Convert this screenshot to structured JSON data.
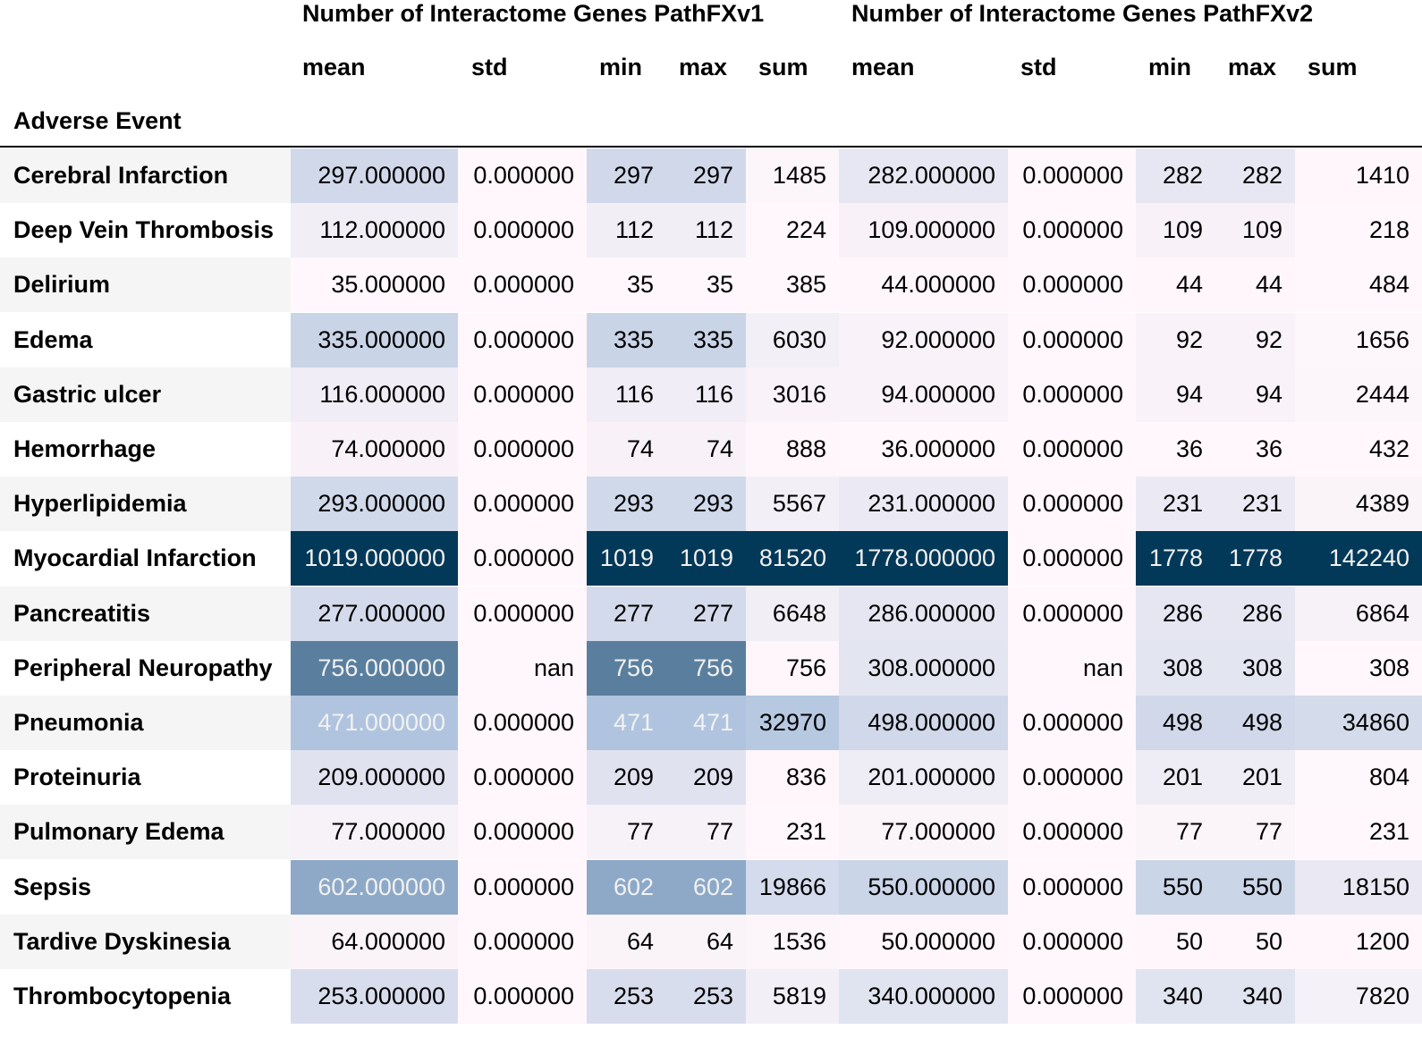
{
  "chart_data": {
    "type": "table",
    "index_label": "Adverse Event",
    "column_groups": [
      {
        "name": "Number of Interactome Genes PathFXv1",
        "columns": [
          "mean",
          "std",
          "min",
          "max",
          "sum"
        ]
      },
      {
        "name": "Number of Interactome Genes PathFXv2",
        "columns": [
          "mean",
          "std",
          "min",
          "max",
          "sum"
        ]
      }
    ],
    "rows": [
      {
        "label": "Cerebral Infarction",
        "values": [
          "297.000000",
          "0.000000",
          "297",
          "297",
          "1485",
          "282.000000",
          "0.000000",
          "282",
          "282",
          "1410"
        ]
      },
      {
        "label": "Deep Vein Thrombosis",
        "values": [
          "112.000000",
          "0.000000",
          "112",
          "112",
          "224",
          "109.000000",
          "0.000000",
          "109",
          "109",
          "218"
        ]
      },
      {
        "label": "Delirium",
        "values": [
          "35.000000",
          "0.000000",
          "35",
          "35",
          "385",
          "44.000000",
          "0.000000",
          "44",
          "44",
          "484"
        ]
      },
      {
        "label": "Edema",
        "values": [
          "335.000000",
          "0.000000",
          "335",
          "335",
          "6030",
          "92.000000",
          "0.000000",
          "92",
          "92",
          "1656"
        ]
      },
      {
        "label": "Gastric ulcer",
        "values": [
          "116.000000",
          "0.000000",
          "116",
          "116",
          "3016",
          "94.000000",
          "0.000000",
          "94",
          "94",
          "2444"
        ]
      },
      {
        "label": "Hemorrhage",
        "values": [
          "74.000000",
          "0.000000",
          "74",
          "74",
          "888",
          "36.000000",
          "0.000000",
          "36",
          "36",
          "432"
        ]
      },
      {
        "label": "Hyperlipidemia",
        "values": [
          "293.000000",
          "0.000000",
          "293",
          "293",
          "5567",
          "231.000000",
          "0.000000",
          "231",
          "231",
          "4389"
        ]
      },
      {
        "label": "Myocardial Infarction",
        "values": [
          "1019.000000",
          "0.000000",
          "1019",
          "1019",
          "81520",
          "1778.000000",
          "0.000000",
          "1778",
          "1778",
          "142240"
        ]
      },
      {
        "label": "Pancreatitis",
        "values": [
          "277.000000",
          "0.000000",
          "277",
          "277",
          "6648",
          "286.000000",
          "0.000000",
          "286",
          "286",
          "6864"
        ]
      },
      {
        "label": "Peripheral Neuropathy",
        "values": [
          "756.000000",
          "nan",
          "756",
          "756",
          "756",
          "308.000000",
          "nan",
          "308",
          "308",
          "308"
        ]
      },
      {
        "label": "Pneumonia",
        "values": [
          "471.000000",
          "0.000000",
          "471",
          "471",
          "32970",
          "498.000000",
          "0.000000",
          "498",
          "498",
          "34860"
        ]
      },
      {
        "label": "Proteinuria",
        "values": [
          "209.000000",
          "0.000000",
          "209",
          "209",
          "836",
          "201.000000",
          "0.000000",
          "201",
          "201",
          "804"
        ]
      },
      {
        "label": "Pulmonary Edema",
        "values": [
          "77.000000",
          "0.000000",
          "77",
          "77",
          "231",
          "77.000000",
          "0.000000",
          "77",
          "77",
          "231"
        ]
      },
      {
        "label": "Sepsis",
        "values": [
          "602.000000",
          "0.000000",
          "602",
          "602",
          "19866",
          "550.000000",
          "0.000000",
          "550",
          "550",
          "18150"
        ]
      },
      {
        "label": "Tardive Dyskinesia",
        "values": [
          "64.000000",
          "0.000000",
          "64",
          "64",
          "1536",
          "50.000000",
          "0.000000",
          "50",
          "50",
          "1200"
        ]
      },
      {
        "label": "Thrombocytopenia",
        "values": [
          "253.000000",
          "0.000000",
          "253",
          "253",
          "5819",
          "340.000000",
          "0.000000",
          "340",
          "340",
          "7820"
        ]
      }
    ],
    "colormap": {
      "low": "#fff7fb",
      "mid": "#a6bddb",
      "high": "#023858"
    }
  }
}
